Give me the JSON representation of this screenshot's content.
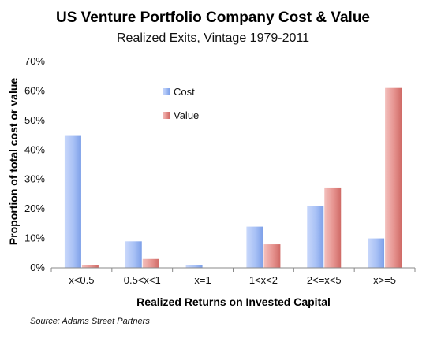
{
  "chart_data": {
    "type": "bar",
    "title": "US Venture Portfolio Company Cost & Value",
    "subtitle": "Realized Exits, Vintage 1979-2011",
    "xlabel": "Realized Returns on Invested Capital",
    "ylabel": "Proportion of total cost or value",
    "categories": [
      "x<0.5",
      "0.5<x<1",
      "x=1",
      "1<x<2",
      "2<=x<5",
      "x>=5"
    ],
    "series": [
      {
        "name": "Cost",
        "values": [
          45,
          9,
          1,
          14,
          21,
          10
        ],
        "color": "#8fb0f0"
      },
      {
        "name": "Value",
        "values": [
          1,
          3,
          0,
          8,
          27,
          61
        ],
        "color": "#d97c78"
      }
    ],
    "ylim": [
      0,
      70
    ],
    "yticks": [
      "0%",
      "10%",
      "20%",
      "30%",
      "40%",
      "50%",
      "60%",
      "70%"
    ],
    "grid": false,
    "legend_position": "upper-center",
    "source": "Source: Adams Street Partners"
  }
}
